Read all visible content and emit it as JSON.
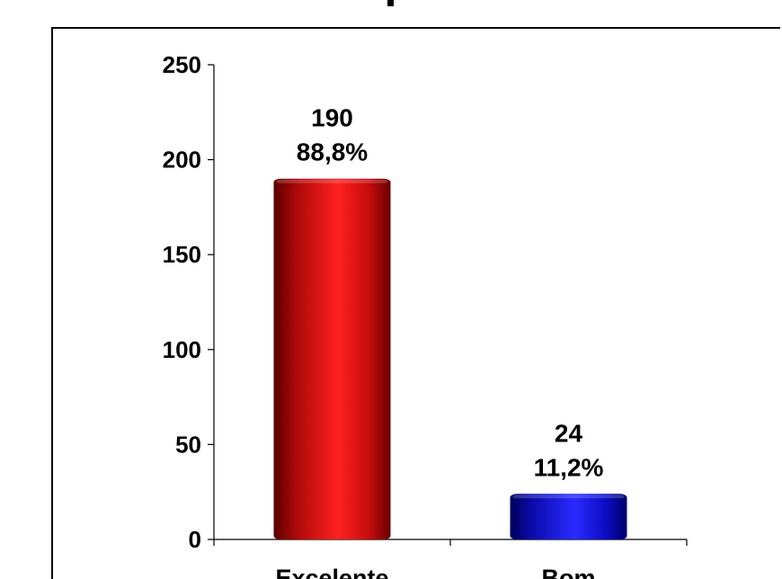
{
  "chart_data": {
    "type": "bar",
    "categories": [
      "Excelente",
      "Bom"
    ],
    "values": [
      190,
      24
    ],
    "percent_labels": [
      "88,8%",
      "11,2%"
    ],
    "value_labels": [
      "190",
      "24"
    ],
    "yticks": [
      "0",
      "50",
      "100",
      "150",
      "200",
      "250"
    ],
    "ylim": [
      0,
      250
    ],
    "grid": false,
    "legend": "none",
    "colors": [
      "#d41414",
      "#1a1ad0"
    ]
  }
}
